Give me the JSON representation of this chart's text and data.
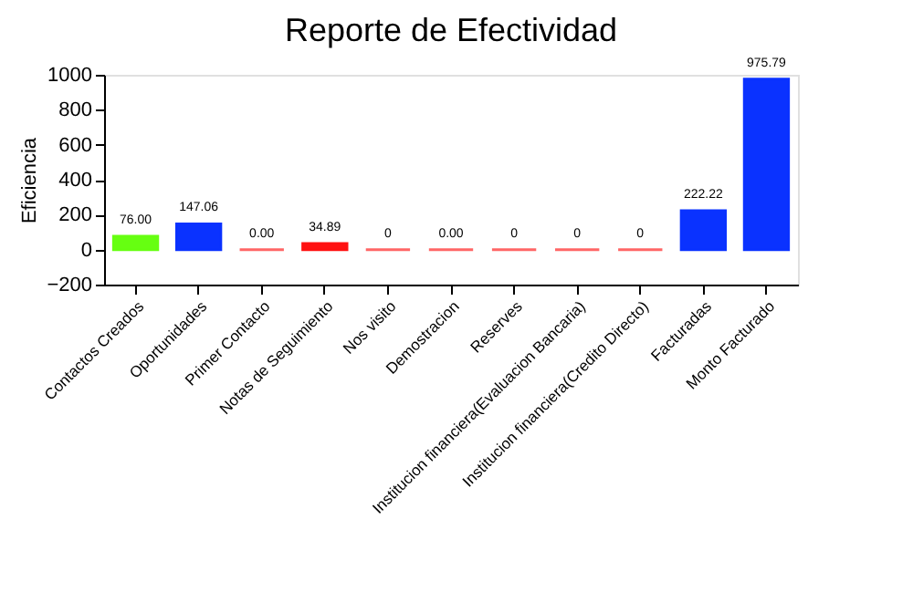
{
  "chart_data": {
    "type": "bar",
    "title": "Reporte de Efectividad",
    "ylabel": "Eficiencia",
    "categories": [
      "Contactos Creados",
      "Oportunidades",
      "Primer Contacto",
      "Notas de Seguimiento",
      "Nos visito",
      "Demostracion",
      "Reserves",
      "Institucion financiera(Evaluacion Bancaria)",
      "Institucion financiera(Credito Directo)",
      "Facturadas",
      "Monto Facturado"
    ],
    "values": [
      76.0,
      147.06,
      0,
      34.89,
      0,
      0,
      0,
      0,
      0,
      222.22,
      975.79
    ],
    "value_labels": [
      "76.00",
      "147.06",
      "0.00",
      "34.89",
      "0",
      "0.00",
      "0",
      "0",
      "0",
      "222.22",
      "975.79"
    ],
    "colors": [
      "#66ff11",
      "#0a32ff",
      "#ff6666",
      "#ff1111",
      "#ff6666",
      "#ff6666",
      "#ff6666",
      "#ff6666",
      "#ff6666",
      "#0a32ff",
      "#0a32ff"
    ],
    "ylim": [
      -200,
      1000
    ],
    "yticks": [
      -200,
      0,
      200,
      400,
      600,
      800,
      1000
    ]
  }
}
